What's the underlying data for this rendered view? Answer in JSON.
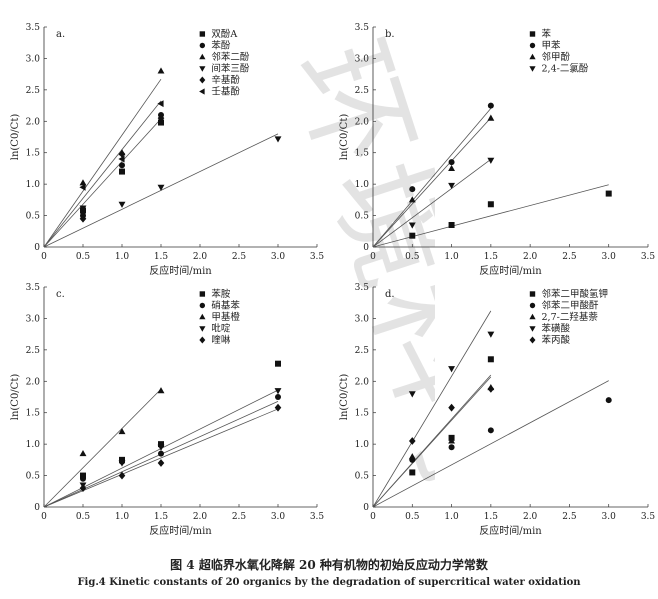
{
  "caption": {
    "cn": "图 4   超临界水氧化降解 20 种有机物的初始反应动力学常数",
    "en": "Fig.4   Kinetic constants of 20 organics by the degradation of supercritical water oxidation"
  },
  "watermark": "环境科学",
  "chart_data": [
    {
      "id": "a",
      "type": "scatter",
      "panel_label": "a.",
      "xlabel": "反应时间/min",
      "ylabel": "ln(C0/Ct)",
      "xlim": [
        0,
        3.5
      ],
      "ylim": [
        0,
        3.5
      ],
      "xticks": [
        "0",
        "0.5",
        "1.0",
        "1.5",
        "2.0",
        "2.5",
        "3.0",
        "3.5"
      ],
      "yticks": [
        "0",
        "0.5",
        "1.0",
        "1.5",
        "2.0",
        "2.5",
        "3.0",
        "3.5"
      ],
      "legend_position": "top-right",
      "series": [
        {
          "name": "双酚A",
          "marker": "square",
          "points": [
            [
              0.5,
              0.58
            ],
            [
              1.0,
              1.2
            ],
            [
              1.5,
              1.98
            ]
          ]
        },
        {
          "name": "苯酚",
          "marker": "circle",
          "points": [
            [
              0.5,
              0.5
            ],
            [
              1.0,
              1.3
            ],
            [
              1.5,
              2.1
            ]
          ]
        },
        {
          "name": "邻苯二酚",
          "marker": "triangle-up",
          "points": [
            [
              0.5,
              1.02
            ],
            [
              1.0,
              1.5
            ],
            [
              1.5,
              2.8
            ]
          ]
        },
        {
          "name": "间苯三酚",
          "marker": "triangle-down",
          "points": [
            [
              0.5,
              0.62
            ],
            [
              1.0,
              0.68
            ],
            [
              1.5,
              0.95
            ],
            [
              3.0,
              1.72
            ]
          ]
        },
        {
          "name": "辛基酚",
          "marker": "diamond",
          "points": [
            [
              0.5,
              0.45
            ],
            [
              1.0,
              1.48
            ],
            [
              1.5,
              2.05
            ]
          ]
        },
        {
          "name": "壬基酚",
          "marker": "triangle-left",
          "points": [
            [
              0.5,
              0.95
            ],
            [
              1.0,
              1.4
            ],
            [
              1.5,
              2.28
            ]
          ]
        }
      ],
      "fit_lines": [
        [
          1.78,
          1.5
        ],
        [
          1.36,
          1.5
        ],
        [
          1.55,
          1.5
        ],
        [
          0.6,
          3.0
        ]
      ]
    },
    {
      "id": "b",
      "type": "scatter",
      "panel_label": "b.",
      "xlabel": "反应时间/min",
      "ylabel": "ln(C0/Ct)",
      "xlim": [
        0,
        3.5
      ],
      "ylim": [
        0,
        3.5
      ],
      "xticks": [
        "0",
        "0.5",
        "1.0",
        "1.5",
        "2.0",
        "2.5",
        "3.0",
        "3.5"
      ],
      "yticks": [
        "0",
        "0.5",
        "1.0",
        "1.5",
        "2.0",
        "2.5",
        "3.0",
        "3.5"
      ],
      "legend_position": "top-right",
      "series": [
        {
          "name": "苯",
          "marker": "square",
          "points": [
            [
              0.5,
              0.18
            ],
            [
              1.0,
              0.35
            ],
            [
              1.5,
              0.68
            ],
            [
              3.0,
              0.85
            ]
          ]
        },
        {
          "name": "甲苯",
          "marker": "circle",
          "points": [
            [
              0.5,
              0.92
            ],
            [
              1.0,
              1.35
            ],
            [
              1.5,
              2.25
            ]
          ]
        },
        {
          "name": "邻甲酚",
          "marker": "triangle-up",
          "points": [
            [
              0.5,
              0.75
            ],
            [
              1.0,
              1.25
            ],
            [
              1.5,
              2.05
            ]
          ]
        },
        {
          "name": "2,4-二氯酚",
          "marker": "triangle-down",
          "points": [
            [
              0.5,
              0.35
            ],
            [
              1.0,
              0.98
            ],
            [
              1.5,
              1.38
            ]
          ]
        }
      ],
      "fit_lines": [
        [
          1.47,
          1.5
        ],
        [
          1.37,
          1.5
        ],
        [
          0.93,
          1.5
        ],
        [
          0.33,
          3.0
        ]
      ]
    },
    {
      "id": "c",
      "type": "scatter",
      "panel_label": "c.",
      "xlabel": "反应时间/min",
      "ylabel": "ln(C0/Ct)",
      "xlim": [
        0,
        3.5
      ],
      "ylim": [
        0,
        3.5
      ],
      "xticks": [
        "0",
        "0.5",
        "1.0",
        "1.5",
        "2.0",
        "2.5",
        "3.0",
        "3.5"
      ],
      "yticks": [
        "0",
        "0.5",
        "1.0",
        "1.5",
        "2.0",
        "2.5",
        "3.0",
        "3.5"
      ],
      "legend_position": "top-right",
      "series": [
        {
          "name": "苯胺",
          "marker": "square",
          "points": [
            [
              0.5,
              0.5
            ],
            [
              1.0,
              0.75
            ],
            [
              1.5,
              1.0
            ],
            [
              3.0,
              2.28
            ]
          ]
        },
        {
          "name": "硝基苯",
          "marker": "circle",
          "points": [
            [
              0.5,
              0.45
            ],
            [
              1.0,
              0.72
            ],
            [
              1.5,
              0.85
            ],
            [
              3.0,
              1.75
            ]
          ]
        },
        {
          "name": "甲基橙",
          "marker": "triangle-up",
          "points": [
            [
              0.5,
              0.85
            ],
            [
              1.0,
              1.2
            ],
            [
              1.5,
              1.85
            ]
          ]
        },
        {
          "name": "吡啶",
          "marker": "triangle-down",
          "points": [
            [
              0.5,
              0.35
            ],
            [
              1.0,
              0.7
            ],
            [
              1.5,
              0.95
            ],
            [
              3.0,
              1.85
            ]
          ]
        },
        {
          "name": "喹啉",
          "marker": "diamond",
          "points": [
            [
              0.5,
              0.3
            ],
            [
              1.0,
              0.5
            ],
            [
              1.5,
              0.7
            ],
            [
              3.0,
              1.58
            ]
          ]
        }
      ],
      "fit_lines": [
        [
          1.25,
          1.5
        ],
        [
          0.62,
          3.0
        ],
        [
          0.56,
          3.0
        ],
        [
          0.52,
          3.0
        ]
      ]
    },
    {
      "id": "d",
      "type": "scatter",
      "panel_label": "d.",
      "xlabel": "反应时间/min",
      "ylabel": "ln(C0/Ct)",
      "xlim": [
        0,
        3.5
      ],
      "ylim": [
        0,
        3.5
      ],
      "xticks": [
        "0",
        "0.5",
        "1.0",
        "1.5",
        "2.0",
        "2.5",
        "3.0",
        "3.5"
      ],
      "yticks": [
        "0",
        "0.5",
        "1.0",
        "1.5",
        "2.0",
        "2.5",
        "3.0",
        "3.5"
      ],
      "legend_position": "top-right",
      "series": [
        {
          "name": "邻苯二甲酸氢钾",
          "marker": "square",
          "points": [
            [
              0.5,
              0.55
            ],
            [
              1.0,
              1.1
            ],
            [
              1.5,
              2.35
            ]
          ]
        },
        {
          "name": "邻苯二甲酸酐",
          "marker": "circle",
          "points": [
            [
              0.5,
              0.75
            ],
            [
              1.0,
              0.95
            ],
            [
              1.5,
              1.22
            ],
            [
              3.0,
              1.7
            ]
          ]
        },
        {
          "name": "2,7-二羟基萘",
          "marker": "triangle-up",
          "points": [
            [
              0.5,
              0.8
            ],
            [
              1.0,
              1.05
            ],
            [
              1.5,
              1.9
            ]
          ]
        },
        {
          "name": "苯磺酸",
          "marker": "triangle-down",
          "points": [
            [
              0.5,
              1.8
            ],
            [
              1.0,
              2.2
            ],
            [
              1.5,
              2.75
            ]
          ]
        },
        {
          "name": "苯丙酸",
          "marker": "diamond",
          "points": [
            [
              0.5,
              1.05
            ],
            [
              1.0,
              1.58
            ],
            [
              1.5,
              1.88
            ]
          ]
        }
      ],
      "fit_lines": [
        [
          2.08,
          1.5
        ],
        [
          1.4,
          1.5
        ],
        [
          1.38,
          1.5
        ],
        [
          0.67,
          3.0
        ]
      ]
    }
  ]
}
